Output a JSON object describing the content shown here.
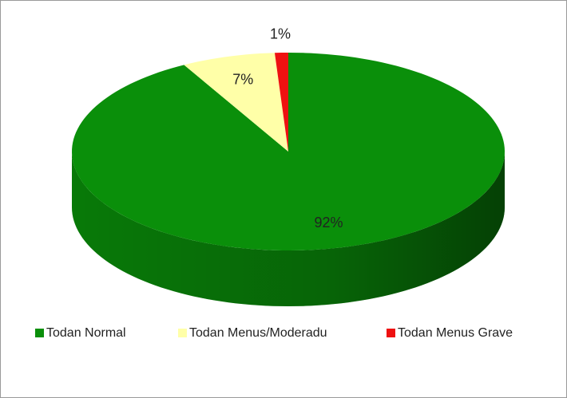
{
  "chart_data": {
    "type": "pie3d",
    "categories": [
      "Todan Normal",
      "Todan Menus/Moderadu",
      "Todan Menus Grave"
    ],
    "values": [
      92,
      7,
      1
    ],
    "value_labels": [
      "92%",
      "7%",
      "1%"
    ],
    "colors": [
      "#0a8f0a",
      "#ffffa8",
      "#ee1111"
    ],
    "legend": "bottom"
  }
}
